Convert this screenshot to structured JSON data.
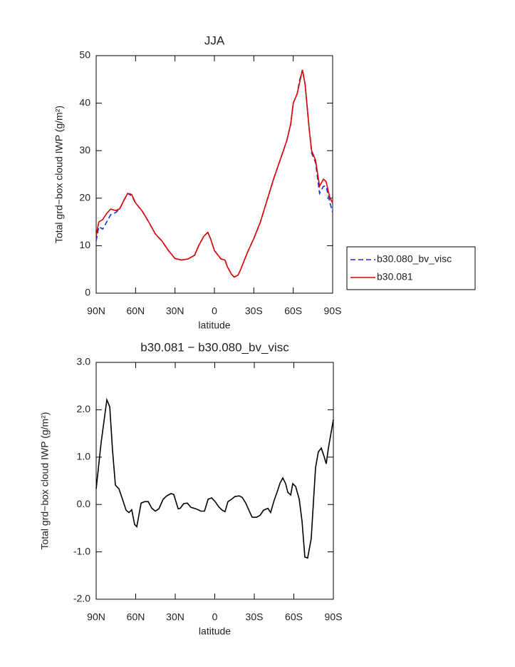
{
  "chart_data": [
    {
      "type": "line",
      "title": "JJA",
      "xlabel": "latitude",
      "ylabel": "Total grd−box cloud IWP (g/m²)",
      "x": [
        90,
        88,
        85,
        82,
        79,
        75,
        72,
        69,
        66,
        63,
        60,
        55,
        50,
        45,
        40,
        35,
        30,
        25,
        20,
        15,
        12,
        8,
        5,
        3,
        0,
        -5,
        -8,
        -10,
        -13,
        -15,
        -18,
        -20,
        -25,
        -30,
        -35,
        -40,
        -45,
        -50,
        -55,
        -58,
        -60,
        -63,
        -65,
        -67,
        -69,
        -72,
        -74,
        -77,
        -80,
        -83,
        -85,
        -88,
        -90
      ],
      "series": [
        {
          "name": "b30.080_bv_visc",
          "color": "#1f2fd0",
          "style": "dashed",
          "values": [
            11,
            14,
            13.5,
            15,
            16.5,
            17,
            17.8,
            19.5,
            21,
            20.5,
            19,
            17.3,
            15,
            12.5,
            11,
            9,
            7.3,
            7,
            7.2,
            8,
            10,
            12,
            12.8,
            11.5,
            9,
            7.2,
            7,
            5.5,
            4,
            3.4,
            3.8,
            5,
            8.5,
            11.5,
            15,
            19.5,
            24,
            28,
            32,
            35.5,
            40,
            42,
            45,
            47,
            44,
            35,
            29.5,
            27.5,
            21,
            22.5,
            22.5,
            19,
            17
          ]
        },
        {
          "name": "b30.081",
          "color": "#e00000",
          "style": "solid",
          "values": [
            12,
            15,
            15.5,
            16.8,
            17.7,
            17.4,
            17.8,
            19.5,
            21,
            20.8,
            19,
            17.3,
            15,
            12.5,
            11,
            9,
            7.3,
            7,
            7.2,
            8,
            10,
            12,
            12.8,
            11.5,
            9,
            7.2,
            7,
            5.5,
            4,
            3.4,
            3.8,
            5,
            8.5,
            11.5,
            15,
            19.5,
            24,
            28,
            32,
            35.5,
            40,
            42,
            44.5,
            47,
            44,
            35,
            30,
            28,
            22.5,
            24,
            23.5,
            20,
            19
          ]
        }
      ],
      "xlim": [
        90,
        -90
      ],
      "xticks": [
        {
          "value": 90,
          "label": "90N"
        },
        {
          "value": 60,
          "label": "60N"
        },
        {
          "value": 30,
          "label": "30N"
        },
        0,
        {
          "value": -30,
          "label": "30S"
        },
        {
          "value": -60,
          "label": "60S"
        },
        {
          "value": -90,
          "label": "90S"
        }
      ],
      "ylim": [
        0,
        50
      ],
      "yticks": [
        0,
        10,
        20,
        30,
        40,
        50
      ],
      "legend": "right"
    },
    {
      "type": "line",
      "title": "b30.081 − b30.080_bv_visc",
      "xlabel": "latitude",
      "ylabel": "Total grd−box cloud IWP (g/m²)",
      "x": [
        90,
        86.2,
        81.9,
        79.7,
        77.6,
        75.4,
        72.7,
        70,
        67.3,
        65.1,
        63,
        60.8,
        59.2,
        55.9,
        53.2,
        50.5,
        47.8,
        45.1,
        42.4,
        39.2,
        36.5,
        33.2,
        31.1,
        27.8,
        26.2,
        23.5,
        20.8,
        18.1,
        14.3,
        10.5,
        7.8,
        5.1,
        2.4,
        -0.3,
        -3,
        -5.7,
        -7.8,
        -10,
        -12.7,
        -15.4,
        -18.6,
        -20.8,
        -23.5,
        -26.2,
        -28.4,
        -31.6,
        -34.3,
        -37,
        -40.3,
        -42.4,
        -45.1,
        -47.3,
        -49.5,
        -51.6,
        -53.8,
        -55.4,
        -57.6,
        -59.2,
        -61.4,
        -64.1,
        -66.2,
        -68.4,
        -70.5,
        -73.2,
        -76.5,
        -78.6,
        -80.8,
        -83,
        -84.6,
        -86.2,
        -90
      ],
      "values": [
        0.33,
        1.31,
        2.21,
        2.06,
        1.16,
        0.41,
        0.33,
        0.11,
        -0.12,
        -0.17,
        -0.11,
        -0.42,
        -0.47,
        0.03,
        0.06,
        0.06,
        -0.08,
        -0.14,
        -0.09,
        0.11,
        0.18,
        0.23,
        0.21,
        -0.09,
        -0.08,
        0.02,
        0.03,
        -0.06,
        -0.09,
        -0.14,
        -0.14,
        0.11,
        0.14,
        0.06,
        -0.05,
        -0.12,
        -0.15,
        0.06,
        0.11,
        0.17,
        0.18,
        0.15,
        0.03,
        -0.14,
        -0.27,
        -0.27,
        -0.23,
        -0.12,
        -0.08,
        -0.17,
        0.09,
        0.26,
        0.45,
        0.56,
        0.44,
        0.26,
        0.2,
        0.44,
        0.38,
        0.11,
        -0.35,
        -1.11,
        -1.13,
        -0.72,
        0.78,
        1.11,
        1.19,
        1.01,
        0.86,
        1.19,
        1.79
      ],
      "color": "#000000",
      "xlim": [
        90,
        -90
      ],
      "xticks": [
        {
          "value": 90,
          "label": "90N"
        },
        {
          "value": 60,
          "label": "60N"
        },
        {
          "value": 30,
          "label": "30N"
        },
        0,
        {
          "value": -30,
          "label": "30S"
        },
        {
          "value": -60,
          "label": "60S"
        },
        {
          "value": -90,
          "label": "90S"
        }
      ],
      "ylim": [
        -2,
        3
      ],
      "yticks": [
        {
          "value": -2,
          "label": "-2.0"
        },
        {
          "value": -1,
          "label": "-1.0"
        },
        {
          "value": 0,
          "label": "0.0"
        },
        {
          "value": 1,
          "label": "1.0"
        },
        {
          "value": 2,
          "label": "2.0"
        },
        {
          "value": 3,
          "label": "3.0"
        }
      ]
    }
  ]
}
